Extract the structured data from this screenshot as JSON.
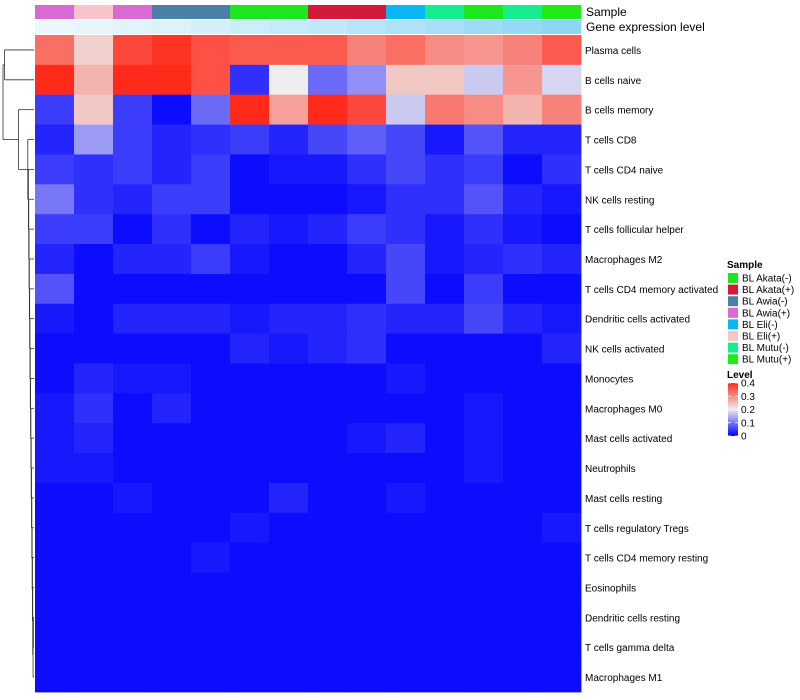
{
  "chart_data": {
    "type": "heatmap",
    "annotation_labels": [
      "Sample",
      "Gene expression level"
    ],
    "rows": [
      "Plasma cells",
      "B cells naive",
      "B cells memory",
      "T cells CD8",
      "T cells CD4 naive",
      "NK cells resting",
      "T cells follicular helper",
      "Macrophages M2",
      "T cells CD4 memory activated",
      "Dendritic cells activated",
      "NK cells activated",
      "Monocytes",
      "Macrophages M0",
      "Mast cells activated",
      "Neutrophils",
      "Mast cells resting",
      "T cells regulatory  Tregs",
      "T cells CD4 memory resting",
      "Eosinophils",
      "Dendritic cells resting",
      "T cells gamma delta",
      "Macrophages M1"
    ],
    "column_samples": [
      "BL Awia(+)",
      "BL Eli(+)",
      "BL Awia(+)",
      "BL Awia(-)",
      "BL Awia(-)",
      "BL Akata(-)",
      "BL Akata(-)",
      "BL Akata(+)",
      "BL Akata(+)",
      "BL Eli(-)",
      "BL Mutu(-)",
      "BL Akata(-)",
      "BL Mutu(-)",
      "BL Mutu(+)"
    ],
    "gene_expression_level": [
      0.05,
      0.08,
      0.12,
      0.15,
      0.2,
      0.25,
      0.3,
      0.34,
      0.4,
      0.45,
      0.5,
      0.56,
      0.62,
      0.68
    ],
    "gene_expression_scale": [
      "#f4fafd",
      "#5bc4ef"
    ],
    "values": [
      [
        0.33,
        0.23,
        0.37,
        0.39,
        0.36,
        0.35,
        0.35,
        0.35,
        0.31,
        0.33,
        0.3,
        0.29,
        0.31,
        0.35
      ],
      [
        0.4,
        0.26,
        0.4,
        0.4,
        0.36,
        0.04,
        0.2,
        0.09,
        0.12,
        0.24,
        0.24,
        0.17,
        0.29,
        0.18
      ],
      [
        0.05,
        0.24,
        0.05,
        0.01,
        0.09,
        0.4,
        0.28,
        0.4,
        0.37,
        0.17,
        0.32,
        0.3,
        0.26,
        0.31
      ],
      [
        0.03,
        0.13,
        0.05,
        0.03,
        0.04,
        0.05,
        0.03,
        0.06,
        0.08,
        0.06,
        0.02,
        0.07,
        0.03,
        0.03
      ],
      [
        0.05,
        0.04,
        0.05,
        0.03,
        0.05,
        0.01,
        0.02,
        0.02,
        0.04,
        0.06,
        0.04,
        0.05,
        0.01,
        0.04
      ],
      [
        0.1,
        0.04,
        0.03,
        0.05,
        0.05,
        0.01,
        0.01,
        0.01,
        0.02,
        0.04,
        0.04,
        0.07,
        0.03,
        0.02
      ],
      [
        0.05,
        0.05,
        0.01,
        0.04,
        0.01,
        0.03,
        0.02,
        0.03,
        0.05,
        0.04,
        0.02,
        0.04,
        0.02,
        0.01
      ],
      [
        0.03,
        0.01,
        0.03,
        0.03,
        0.05,
        0.02,
        0.01,
        0.01,
        0.03,
        0.06,
        0.02,
        0.03,
        0.04,
        0.03
      ],
      [
        0.07,
        0.01,
        0.01,
        0.01,
        0.01,
        0.01,
        0.01,
        0.01,
        0.01,
        0.06,
        0.01,
        0.05,
        0.01,
        0.01
      ],
      [
        0.02,
        0.01,
        0.03,
        0.03,
        0.03,
        0.02,
        0.03,
        0.03,
        0.04,
        0.03,
        0.03,
        0.06,
        0.03,
        0.02
      ],
      [
        0.01,
        0.01,
        0.01,
        0.01,
        0.01,
        0.03,
        0.02,
        0.03,
        0.04,
        0.01,
        0.01,
        0.01,
        0.01,
        0.03
      ],
      [
        0.01,
        0.03,
        0.02,
        0.02,
        0.01,
        0.01,
        0.01,
        0.01,
        0.01,
        0.02,
        0.01,
        0.01,
        0.01,
        0.01
      ],
      [
        0.02,
        0.04,
        0.01,
        0.03,
        0.01,
        0.01,
        0.01,
        0.01,
        0.01,
        0.01,
        0.01,
        0.02,
        0.01,
        0.01
      ],
      [
        0.02,
        0.03,
        0.01,
        0.01,
        0.01,
        0.01,
        0.01,
        0.01,
        0.02,
        0.03,
        0.01,
        0.02,
        0.01,
        0.01
      ],
      [
        0.02,
        0.02,
        0.01,
        0.01,
        0.01,
        0.01,
        0.01,
        0.01,
        0.01,
        0.01,
        0.01,
        0.02,
        0.01,
        0.01
      ],
      [
        0.01,
        0.01,
        0.02,
        0.01,
        0.01,
        0.01,
        0.03,
        0.01,
        0.01,
        0.02,
        0.01,
        0.01,
        0.01,
        0.01
      ],
      [
        0.01,
        0.01,
        0.01,
        0.01,
        0.01,
        0.02,
        0.01,
        0.01,
        0.01,
        0.01,
        0.01,
        0.01,
        0.01,
        0.02
      ],
      [
        0.01,
        0.01,
        0.01,
        0.01,
        0.02,
        0.01,
        0.01,
        0.01,
        0.01,
        0.01,
        0.01,
        0.01,
        0.01,
        0.01
      ],
      [
        0.01,
        0.01,
        0.01,
        0.01,
        0.01,
        0.01,
        0.01,
        0.01,
        0.01,
        0.01,
        0.01,
        0.01,
        0.01,
        0.01
      ],
      [
        0.01,
        0.01,
        0.01,
        0.01,
        0.01,
        0.01,
        0.01,
        0.01,
        0.01,
        0.01,
        0.01,
        0.01,
        0.01,
        0.01
      ],
      [
        0.01,
        0.01,
        0.01,
        0.01,
        0.01,
        0.01,
        0.01,
        0.01,
        0.01,
        0.01,
        0.01,
        0.01,
        0.01,
        0.01
      ],
      [
        0.01,
        0.01,
        0.01,
        0.01,
        0.01,
        0.01,
        0.01,
        0.01,
        0.01,
        0.01,
        0.01,
        0.01,
        0.01,
        0.01
      ]
    ],
    "legend_sample": {
      "title": "Sample",
      "items": [
        {
          "label": "BL Akata(-)",
          "color": "#1ee51e"
        },
        {
          "label": "BL Akata(+)",
          "color": "#d41a3a"
        },
        {
          "label": "BL Awia(-)",
          "color": "#4a7fa8"
        },
        {
          "label": "BL Awia(+)",
          "color": "#d86ad6"
        },
        {
          "label": "BL Eli(-)",
          "color": "#0ab7f2"
        },
        {
          "label": "BL Eli(+)",
          "color": "#f8c4cc"
        },
        {
          "label": "BL Mutu(-)",
          "color": "#17ed8f"
        },
        {
          "label": "BL Mutu(+)",
          "color": "#22ea16"
        }
      ]
    },
    "legend_level": {
      "title": "Level",
      "ticks": [
        "0.4",
        "0.3",
        "0.2",
        "0.1",
        "0"
      ],
      "min": 0,
      "max": 0.4
    },
    "color_scale": {
      "low": "#0000ff",
      "mid": "#eeeeee",
      "high": "#ff2a1a"
    },
    "row_dendrogram": {
      "order": [
        0,
        1,
        2,
        3,
        4,
        5,
        6,
        7,
        8,
        9,
        10,
        11,
        12,
        13,
        14,
        15,
        16,
        17,
        18,
        19,
        20,
        21
      ],
      "merges": [
        [
          [
            -1,
            -2
          ],
          0.95
        ],
        [
          [
            -20,
            -21
          ],
          0.02
        ],
        [
          [
            -22,
            2
          ],
          0.03
        ],
        [
          [
            -19,
            3
          ],
          0.04
        ],
        [
          [
            -18,
            4
          ],
          0.05
        ],
        [
          [
            -17,
            5
          ],
          0.06
        ],
        [
          [
            -16,
            6
          ],
          0.07
        ],
        [
          [
            -15,
            7
          ],
          0.08
        ],
        [
          [
            -14,
            8
          ],
          0.09
        ],
        [
          [
            -13,
            9
          ],
          0.1
        ],
        [
          [
            -12,
            10
          ],
          0.11
        ],
        [
          [
            -11,
            11
          ],
          0.12
        ],
        [
          [
            -10,
            12
          ],
          0.13
        ],
        [
          [
            -9,
            13
          ],
          0.14
        ],
        [
          [
            -8,
            14
          ],
          0.15
        ],
        [
          [
            -7,
            15
          ],
          0.16
        ],
        [
          [
            -6,
            16
          ],
          0.17
        ],
        [
          [
            -5,
            17
          ],
          0.18
        ],
        [
          [
            -4,
            18
          ],
          0.2
        ],
        [
          [
            -3,
            19
          ],
          0.5
        ],
        [
          [
            1,
            20
          ],
          1.0
        ]
      ]
    }
  }
}
